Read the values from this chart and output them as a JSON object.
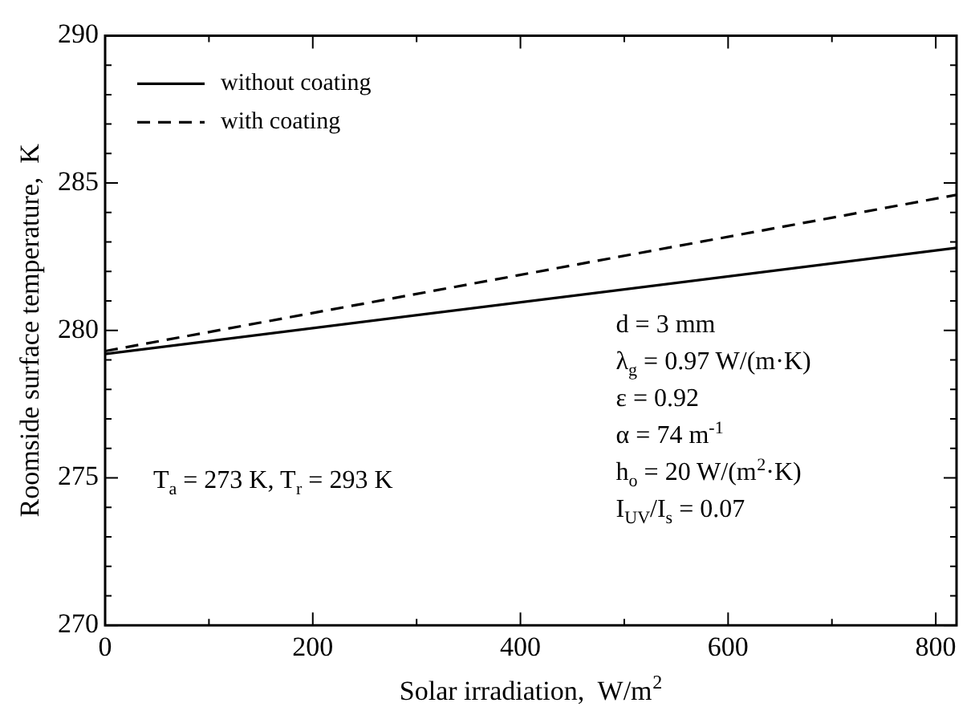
{
  "chart_data": {
    "type": "line",
    "xlabel": "Solar irradiation,  W/m$^{2}$",
    "ylabel": "Roomside surface temperature,  K",
    "x": [
      0,
      820
    ],
    "series": [
      {
        "name": "without coating",
        "color": "#000000",
        "values": [
          279.2,
          282.8
        ],
        "line_style": "solid"
      },
      {
        "name": "with coating",
        "color": "#000000",
        "values": [
          279.3,
          284.6
        ],
        "line_style": "dashed"
      }
    ],
    "xlim": [
      0,
      820
    ],
    "xticks": [
      0,
      200,
      400,
      600,
      800
    ],
    "ylim": [
      270,
      290
    ],
    "yticks": [
      270,
      275,
      280,
      285,
      290
    ],
    "grid": false,
    "legend": "top left",
    "marker": "none",
    "annotations": [
      "T$_{a}$ = 273 K, T$_{r}$ = 293 K",
      "d = 3 mm",
      "λ$_{g}$ = 0.97 W/(m·K)",
      "ε = 0.92",
      "α = 74 m$^{-1}$",
      "h$_{o}$ = 20 W/(m$^{2}$·K)",
      "I$_{UV}$/I$_{s}$ = 0.07"
    ]
  }
}
